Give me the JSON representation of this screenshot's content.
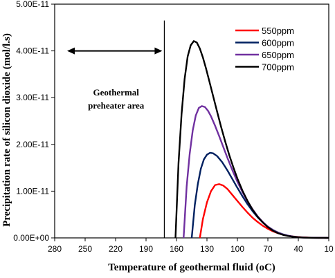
{
  "chart_data": {
    "type": "line",
    "xlabel": "Temperature of geothermal fluid (oC)",
    "ylabel": "Precipitation rate of silicon dioxide (mol/l.s)",
    "xlim": [
      280,
      10
    ],
    "ylim": [
      0,
      5e-11
    ],
    "x_ticks": [
      280,
      250,
      220,
      190,
      160,
      130,
      100,
      70,
      40,
      10
    ],
    "x_tick_labels": [
      "280",
      "250",
      "220",
      "190",
      "160",
      "130",
      "100",
      "70",
      "40",
      "10"
    ],
    "y_ticks": [
      0,
      1e-11,
      2e-11,
      3e-11,
      4e-11,
      5e-11
    ],
    "y_tick_labels": [
      "0.00E+00",
      "1.00E-11",
      "2.00E-11",
      "3.00E-11",
      "4.00E-11",
      "5.00E-11"
    ],
    "grid": false,
    "legend_position": "top-right",
    "series": [
      {
        "name": "550ppm",
        "color": "#ff0000",
        "x": [
          137,
          134,
          130,
          126,
          122,
          118,
          114,
          110,
          105,
          100,
          95,
          90,
          85,
          80,
          75,
          70,
          65,
          60,
          55,
          50,
          45,
          40,
          35,
          30,
          25,
          20,
          15,
          10
        ],
        "y": [
          0,
          4e-12,
          7.6e-12,
          1e-11,
          1.13e-11,
          1.15e-11,
          1.12e-11,
          1.05e-11,
          9.2e-12,
          7.9e-12,
          6.6e-12,
          5.4e-12,
          4.3e-12,
          3.4e-12,
          2.6e-12,
          1.95e-12,
          1.4e-12,
          1e-12,
          7e-13,
          4.6e-13,
          3e-13,
          1.9e-13,
          1.1e-13,
          6e-14,
          3e-14,
          1.5e-14,
          5e-15,
          0
        ]
      },
      {
        "name": "600ppm",
        "color": "#002060",
        "x": [
          145,
          142,
          139,
          136,
          133,
          130,
          127,
          124,
          120,
          115,
          110,
          105,
          100,
          95,
          90,
          85,
          80,
          75,
          70,
          65,
          60,
          55,
          50,
          45,
          40,
          35,
          30,
          25,
          20,
          15,
          10
        ],
        "y": [
          0,
          7e-12,
          1.15e-11,
          1.48e-11,
          1.68e-11,
          1.78e-11,
          1.82e-11,
          1.81e-11,
          1.75e-11,
          1.62e-11,
          1.45e-11,
          1.26e-11,
          1.07e-11,
          8.9e-12,
          7.2e-12,
          5.7e-12,
          4.4e-12,
          3.3e-12,
          2.4e-12,
          1.7e-12,
          1.15e-12,
          7.5e-13,
          4.7e-13,
          2.8e-13,
          1.6e-13,
          9e-14,
          5e-14,
          2.5e-14,
          1e-14,
          4e-15,
          0
        ]
      },
      {
        "name": "650ppm",
        "color": "#7030a0",
        "x": [
          153,
          150,
          147,
          144,
          141,
          138,
          135,
          132,
          129,
          126,
          122,
          118,
          114,
          110,
          105,
          100,
          95,
          90,
          85,
          80,
          75,
          70,
          65,
          60,
          55,
          50,
          45,
          40,
          35,
          30,
          25,
          20,
          15,
          10
        ],
        "y": [
          0,
          1.1e-11,
          1.8e-11,
          2.3e-11,
          2.62e-11,
          2.78e-11,
          2.82e-11,
          2.8e-11,
          2.72e-11,
          2.6e-11,
          2.4e-11,
          2.18e-11,
          1.95e-11,
          1.72e-11,
          1.45e-11,
          1.2e-11,
          9.8e-12,
          7.8e-12,
          6.1e-12,
          4.6e-12,
          3.4e-12,
          2.4e-12,
          1.65e-12,
          1.1e-12,
          7e-13,
          4.3e-13,
          2.5e-13,
          1.4e-13,
          7.5e-14,
          3.8e-14,
          1.8e-14,
          8e-15,
          3e-15,
          0
        ]
      },
      {
        "name": "700ppm",
        "color": "#000000",
        "x": [
          161,
          158,
          155,
          152,
          149,
          146,
          143,
          140,
          137,
          134,
          131,
          128,
          124,
          120,
          116,
          112,
          108,
          104,
          100,
          95,
          90,
          85,
          80,
          75,
          70,
          65,
          60,
          55,
          50,
          45,
          40,
          35,
          30,
          25,
          20,
          15,
          10
        ],
        "y": [
          0,
          1.6e-11,
          2.65e-11,
          3.4e-11,
          3.88e-11,
          4.12e-11,
          4.21e-11,
          4.18e-11,
          4.05e-11,
          3.86e-11,
          3.63e-11,
          3.38e-11,
          3.04e-11,
          2.7e-11,
          2.37e-11,
          2.06e-11,
          1.77e-11,
          1.51e-11,
          1.27e-11,
          1.01e-11,
          7.9e-12,
          6e-12,
          4.5e-12,
          3.3e-12,
          2.3e-12,
          1.55e-12,
          1e-12,
          6.4e-13,
          3.9e-13,
          2.3e-13,
          1.3e-13,
          7e-14,
          3.5e-14,
          1.6e-14,
          7e-15,
          2.5e-15,
          0
        ]
      }
    ],
    "annotations": {
      "region_line_x": 172,
      "region_label_lines": [
        "Geothermal",
        "preheater area"
      ]
    }
  }
}
